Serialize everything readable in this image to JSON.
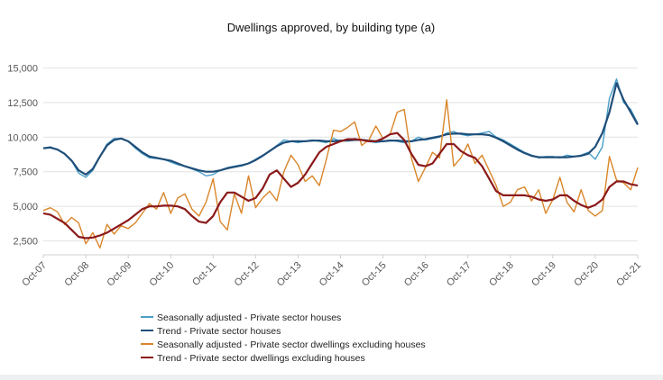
{
  "chart_data": {
    "type": "line",
    "title": "Dwellings approved, by building type (a)",
    "xlabel": "",
    "ylabel": "",
    "x_tick_labels": [
      "Oct-07",
      "Oct-08",
      "Oct-09",
      "Oct-10",
      "Oct-11",
      "Oct-12",
      "Oct-13",
      "Oct-14",
      "Oct-15",
      "Oct-16",
      "Oct-17",
      "Oct-18",
      "Oct-19",
      "Oct-20",
      "Oct-21"
    ],
    "y_tick_labels": [
      "2,500",
      "5,000",
      "7,500",
      "10,000",
      "12,500",
      "15,000"
    ],
    "ylim": [
      1500,
      16000
    ],
    "grid": "horizontal",
    "legend_position": "bottom-left",
    "series": [
      {
        "name": "Seasonally adjusted - Private sector houses",
        "color": "#4a9fc8",
        "x": [
          "Oct-07",
          "Dec-07",
          "Feb-08",
          "Apr-08",
          "Jun-08",
          "Aug-08",
          "Oct-08",
          "Dec-08",
          "Feb-09",
          "Apr-09",
          "Jun-09",
          "Aug-09",
          "Oct-09",
          "Dec-09",
          "Feb-10",
          "Apr-10",
          "Jun-10",
          "Aug-10",
          "Oct-10",
          "Dec-10",
          "Feb-11",
          "Apr-11",
          "Jun-11",
          "Aug-11",
          "Oct-11",
          "Dec-11",
          "Feb-12",
          "Apr-12",
          "Jun-12",
          "Aug-12",
          "Oct-12",
          "Dec-12",
          "Feb-13",
          "Apr-13",
          "Jun-13",
          "Aug-13",
          "Oct-13",
          "Dec-13",
          "Feb-14",
          "Apr-14",
          "Jun-14",
          "Aug-14",
          "Oct-14",
          "Dec-14",
          "Feb-15",
          "Apr-15",
          "Jun-15",
          "Aug-15",
          "Oct-15",
          "Dec-15",
          "Feb-16",
          "Apr-16",
          "Jun-16",
          "Aug-16",
          "Oct-16",
          "Dec-16",
          "Feb-17",
          "Apr-17",
          "Jun-17",
          "Aug-17",
          "Oct-17",
          "Dec-17",
          "Feb-18",
          "Apr-18",
          "Jun-18",
          "Aug-18",
          "Oct-18",
          "Dec-18",
          "Feb-19",
          "Apr-19",
          "Jun-19",
          "Aug-19",
          "Oct-19",
          "Dec-19",
          "Feb-20",
          "Apr-20",
          "Jun-20",
          "Aug-20",
          "Oct-20",
          "Dec-20",
          "Feb-21",
          "Apr-21",
          "Jun-21",
          "Aug-21",
          "Oct-21"
        ],
        "values": [
          9200,
          9300,
          9100,
          8800,
          8300,
          7400,
          7100,
          7600,
          8600,
          9500,
          9900,
          9900,
          9700,
          9200,
          8800,
          8500,
          8450,
          8400,
          8200,
          8000,
          7900,
          7700,
          7500,
          7200,
          7300,
          7600,
          7800,
          7900,
          8000,
          8100,
          8400,
          8700,
          9000,
          9400,
          9800,
          9700,
          9600,
          9700,
          9800,
          9700,
          9600,
          9900,
          9700,
          9800,
          9900,
          9800,
          9700,
          9600,
          9700,
          9800,
          9700,
          9600,
          9700,
          10000,
          9800,
          9900,
          10000,
          10300,
          10400,
          10200,
          10100,
          10200,
          10300,
          10400,
          10000,
          9800,
          9500,
          9200,
          8900,
          8700,
          8500,
          8600,
          8600,
          8500,
          8700,
          8600,
          8700,
          8900,
          8400,
          9300,
          12800,
          14200,
          12500,
          12000,
          11000
        ]
      },
      {
        "name": "Trend - Private sector houses",
        "color": "#1f4e79",
        "x": [
          "Oct-07",
          "Dec-07",
          "Feb-08",
          "Apr-08",
          "Jun-08",
          "Aug-08",
          "Oct-08",
          "Dec-08",
          "Feb-09",
          "Apr-09",
          "Jun-09",
          "Aug-09",
          "Oct-09",
          "Dec-09",
          "Feb-10",
          "Apr-10",
          "Jun-10",
          "Aug-10",
          "Oct-10",
          "Dec-10",
          "Feb-11",
          "Apr-11",
          "Jun-11",
          "Aug-11",
          "Oct-11",
          "Dec-11",
          "Feb-12",
          "Apr-12",
          "Jun-12",
          "Aug-12",
          "Oct-12",
          "Dec-12",
          "Feb-13",
          "Apr-13",
          "Jun-13",
          "Aug-13",
          "Oct-13",
          "Dec-13",
          "Feb-14",
          "Apr-14",
          "Jun-14",
          "Aug-14",
          "Oct-14",
          "Dec-14",
          "Feb-15",
          "Apr-15",
          "Jun-15",
          "Aug-15",
          "Oct-15",
          "Dec-15",
          "Feb-16",
          "Apr-16",
          "Jun-16",
          "Aug-16",
          "Oct-16",
          "Dec-16",
          "Feb-17",
          "Apr-17",
          "Jun-17",
          "Aug-17",
          "Oct-17",
          "Dec-17",
          "Feb-18",
          "Apr-18",
          "Jun-18",
          "Aug-18",
          "Oct-18",
          "Dec-18",
          "Feb-19",
          "Apr-19",
          "Jun-19",
          "Aug-19",
          "Oct-19",
          "Dec-19",
          "Feb-20",
          "Apr-20",
          "Jun-20",
          "Aug-20",
          "Oct-20",
          "Dec-20",
          "Feb-21",
          "Apr-21",
          "Jun-21",
          "Aug-21",
          "Oct-21"
        ],
        "values": [
          9200,
          9250,
          9100,
          8800,
          8300,
          7600,
          7300,
          7700,
          8600,
          9400,
          9800,
          9900,
          9700,
          9300,
          8900,
          8600,
          8500,
          8400,
          8300,
          8100,
          7900,
          7750,
          7600,
          7500,
          7500,
          7600,
          7750,
          7850,
          7950,
          8100,
          8350,
          8650,
          9000,
          9350,
          9600,
          9700,
          9700,
          9700,
          9750,
          9750,
          9700,
          9700,
          9750,
          9750,
          9800,
          9800,
          9750,
          9700,
          9700,
          9750,
          9750,
          9700,
          9700,
          9800,
          9850,
          9950,
          10050,
          10200,
          10250,
          10250,
          10200,
          10200,
          10200,
          10150,
          9950,
          9700,
          9400,
          9100,
          8850,
          8650,
          8550,
          8550,
          8550,
          8550,
          8550,
          8600,
          8650,
          8800,
          9300,
          10300,
          11800,
          13900,
          12700,
          11800,
          10900
        ]
      },
      {
        "name": "Seasonally adjusted - Private sector dwellings excluding houses",
        "color": "#d9862a",
        "x": [
          "Oct-07",
          "Dec-07",
          "Feb-08",
          "Apr-08",
          "Jun-08",
          "Aug-08",
          "Oct-08",
          "Dec-08",
          "Feb-09",
          "Apr-09",
          "Jun-09",
          "Aug-09",
          "Oct-09",
          "Dec-09",
          "Feb-10",
          "Apr-10",
          "Jun-10",
          "Aug-10",
          "Oct-10",
          "Dec-10",
          "Feb-11",
          "Apr-11",
          "Jun-11",
          "Aug-11",
          "Oct-11",
          "Dec-11",
          "Feb-12",
          "Apr-12",
          "Jun-12",
          "Aug-12",
          "Oct-12",
          "Dec-12",
          "Feb-13",
          "Apr-13",
          "Jun-13",
          "Aug-13",
          "Oct-13",
          "Dec-13",
          "Feb-14",
          "Apr-14",
          "Jun-14",
          "Aug-14",
          "Oct-14",
          "Dec-14",
          "Feb-15",
          "Apr-15",
          "Jun-15",
          "Aug-15",
          "Oct-15",
          "Dec-15",
          "Feb-16",
          "Apr-16",
          "Jun-16",
          "Aug-16",
          "Oct-16",
          "Dec-16",
          "Feb-17",
          "Apr-17",
          "Jun-17",
          "Aug-17",
          "Oct-17",
          "Dec-17",
          "Feb-18",
          "Apr-18",
          "Jun-18",
          "Aug-18",
          "Oct-18",
          "Dec-18",
          "Feb-19",
          "Apr-19",
          "Jun-19",
          "Aug-19",
          "Oct-19",
          "Dec-19",
          "Feb-20",
          "Apr-20",
          "Jun-20",
          "Aug-20",
          "Oct-20",
          "Dec-20",
          "Feb-21",
          "Apr-21",
          "Jun-21",
          "Aug-21",
          "Oct-21"
        ],
        "values": [
          4700,
          4900,
          4600,
          3700,
          4200,
          3800,
          2300,
          3100,
          2000,
          3700,
          3000,
          3600,
          3400,
          3800,
          4500,
          5200,
          4800,
          6000,
          4500,
          5600,
          5900,
          4800,
          4300,
          5300,
          7000,
          3900,
          3300,
          5900,
          4500,
          7200,
          4900,
          5600,
          6100,
          5400,
          7500,
          8700,
          8000,
          6800,
          7200,
          6500,
          8400,
          10500,
          10400,
          10700,
          11100,
          9400,
          9800,
          10800,
          9900,
          10200,
          11800,
          12000,
          8500,
          6800,
          7800,
          8900,
          8500,
          12700,
          7900,
          8500,
          9500,
          8100,
          8700,
          7600,
          6500,
          5000,
          5300,
          6200,
          6400,
          5400,
          6200,
          4500,
          5500,
          7100,
          5300,
          4600,
          6200,
          4700,
          4300,
          4700,
          8600,
          6900,
          6700,
          6200,
          7800
        ]
      },
      {
        "name": "Trend - Private sector dwellings excluding houses",
        "color": "#8b1a1a",
        "x": [
          "Oct-07",
          "Dec-07",
          "Feb-08",
          "Apr-08",
          "Jun-08",
          "Aug-08",
          "Oct-08",
          "Dec-08",
          "Feb-09",
          "Apr-09",
          "Jun-09",
          "Aug-09",
          "Oct-09",
          "Dec-09",
          "Feb-10",
          "Apr-10",
          "Jun-10",
          "Aug-10",
          "Oct-10",
          "Dec-10",
          "Feb-11",
          "Apr-11",
          "Jun-11",
          "Aug-11",
          "Oct-11",
          "Dec-11",
          "Feb-12",
          "Apr-12",
          "Jun-12",
          "Aug-12",
          "Oct-12",
          "Dec-12",
          "Feb-13",
          "Apr-13",
          "Jun-13",
          "Aug-13",
          "Oct-13",
          "Dec-13",
          "Feb-14",
          "Apr-14",
          "Jun-14",
          "Aug-14",
          "Oct-14",
          "Dec-14",
          "Feb-15",
          "Apr-15",
          "Jun-15",
          "Aug-15",
          "Oct-15",
          "Dec-15",
          "Feb-16",
          "Apr-16",
          "Jun-16",
          "Aug-16",
          "Oct-16",
          "Dec-16",
          "Feb-17",
          "Apr-17",
          "Jun-17",
          "Aug-17",
          "Oct-17",
          "Dec-17",
          "Feb-18",
          "Apr-18",
          "Jun-18",
          "Aug-18",
          "Oct-18",
          "Dec-18",
          "Feb-19",
          "Apr-19",
          "Jun-19",
          "Aug-19",
          "Oct-19",
          "Dec-19",
          "Feb-20",
          "Apr-20",
          "Jun-20",
          "Aug-20",
          "Oct-20",
          "Dec-20",
          "Feb-21",
          "Apr-21",
          "Jun-21",
          "Aug-21",
          "Oct-21"
        ],
        "values": [
          4500,
          4400,
          4100,
          3800,
          3300,
          2800,
          2700,
          2750,
          2900,
          3100,
          3400,
          3700,
          4000,
          4400,
          4800,
          5000,
          5000,
          5050,
          5050,
          5000,
          4800,
          4300,
          3900,
          3800,
          4300,
          5300,
          6000,
          6000,
          5700,
          5400,
          5600,
          6300,
          7300,
          7600,
          7000,
          6400,
          6700,
          7300,
          8100,
          8900,
          9300,
          9500,
          9700,
          9850,
          9850,
          9800,
          9700,
          9700,
          9900,
          10200,
          10300,
          9800,
          8800,
          8000,
          7900,
          8100,
          8800,
          9500,
          9500,
          9000,
          8700,
          8500,
          7900,
          7000,
          6100,
          5800,
          5800,
          5800,
          5800,
          5700,
          5500,
          5400,
          5500,
          5800,
          5800,
          5400,
          5100,
          4900,
          5100,
          5500,
          6400,
          6800,
          6800,
          6600,
          6500
        ]
      }
    ]
  }
}
